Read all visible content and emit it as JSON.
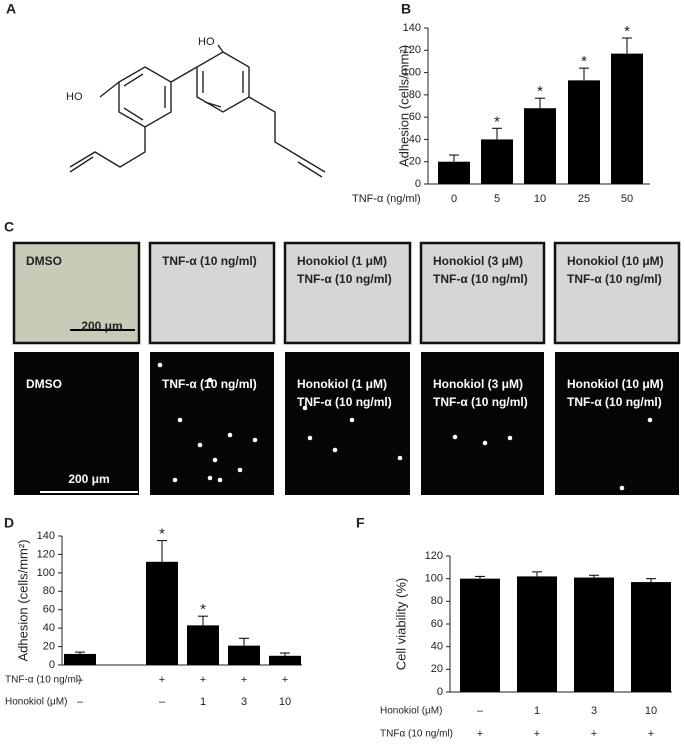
{
  "figure": {
    "panel_labels": [
      "A",
      "B",
      "C",
      "D",
      "F"
    ],
    "molecule_labels": [
      "HO",
      "HO"
    ],
    "images": [
      {
        "top": [
          "DMSO"
        ],
        "bottom": [
          "DMSO"
        ]
      },
      {
        "top": [
          "TNF-α (10 ng/ml)"
        ],
        "bottom": [
          "TNF-α (10 ng/ml)"
        ]
      },
      {
        "top": [
          "Honokiol (1 μM)",
          "TNF-α (10 ng/ml)"
        ],
        "bottom": [
          "Honokiol (1 μM)",
          "TNF-α (10 ng/ml)"
        ]
      },
      {
        "top": [
          "Honokiol (3 μM)",
          "TNF-α (10 ng/ml)"
        ],
        "bottom": [
          "Honokiol (3 μM)",
          "TNF-α (10 ng/ml)"
        ]
      },
      {
        "top": [
          "Honokiol (10 μM)",
          "TNF-α (10 ng/ml)"
        ],
        "bottom": [
          "Honokiol (10 μM)",
          "TNF-α (10 ng/ml)"
        ]
      }
    ],
    "scale_bars": [
      "200 μm",
      "200 μm"
    ]
  },
  "chart_data": [
    {
      "type": "bar",
      "y_label": "Adhesion (cells/mm²)",
      "x_label": "TNF-α  (ng/ml)",
      "categories": [
        "0",
        "5",
        "10",
        "25",
        "50"
      ],
      "values": [
        20,
        40,
        68,
        93,
        117
      ],
      "errors": [
        6,
        10,
        9,
        11,
        14
      ],
      "significance": [
        null,
        "*",
        "*",
        "*",
        "*"
      ],
      "color": "#000000",
      "ylim": [
        0,
        140
      ],
      "yticks": [
        0,
        20,
        40,
        60,
        80,
        100,
        120,
        140
      ]
    },
    {
      "type": "bar",
      "y_label": "Adhesion (cells/mm²)",
      "rows": [
        {
          "label": "TNF-α (10 ng/ml)",
          "values": [
            "–",
            "+",
            "+",
            "+",
            "+"
          ]
        },
        {
          "label": "Honokiol (μM)",
          "values": [
            "–",
            "–",
            "1",
            "3",
            "10"
          ]
        }
      ],
      "values": [
        12,
        112,
        43,
        21,
        10
      ],
      "errors": [
        2,
        23,
        10,
        8,
        3
      ],
      "significance": [
        null,
        "*",
        "*",
        null,
        null
      ],
      "color": "#000000",
      "ylim": [
        0,
        140
      ],
      "yticks": [
        0,
        20,
        40,
        60,
        80,
        100,
        120,
        140
      ]
    },
    {
      "type": "bar",
      "y_label": "Cell viability (%)",
      "rows": [
        {
          "label": "Honokiol (μM)",
          "values": [
            "–",
            "1",
            "3",
            "10"
          ]
        },
        {
          "label": "TNFα (10 ng/ml)",
          "values": [
            "+",
            "+",
            "+",
            "+"
          ]
        }
      ],
      "values": [
        100,
        102,
        101,
        97
      ],
      "errors": [
        2,
        4,
        2,
        3
      ],
      "color": "#000000",
      "ylim": [
        0,
        120
      ],
      "yticks": [
        0,
        20,
        40,
        60,
        80,
        100,
        120
      ]
    }
  ]
}
